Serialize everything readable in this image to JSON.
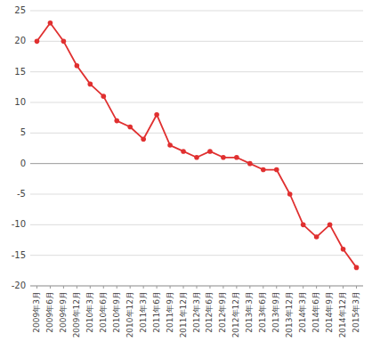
{
  "chart_data": {
    "type": "line",
    "categories": [
      "2009年3月",
      "2009年6月",
      "2009年9月",
      "2009年12月",
      "2010年3月",
      "2010年6月",
      "2010年9月",
      "2010年12月",
      "2011年3月",
      "2011年6月",
      "2011年9月",
      "2011年12月",
      "2012年3月",
      "2012年6月",
      "2012年9月",
      "2012年12月",
      "2013年3月",
      "2013年6月",
      "2013年9月",
      "2013年12月",
      "2014年3月",
      "2014年6月",
      "2014年9月",
      "2014年12月",
      "2015年3月"
    ],
    "values": [
      20,
      23,
      20,
      16,
      13,
      11,
      7,
      6,
      4,
      8,
      3,
      2,
      1,
      2,
      1,
      1,
      0,
      -1,
      -1,
      -5,
      -10,
      -12,
      -10,
      -14,
      -17
    ],
    "color": "#e03030",
    "marker": "circle",
    "ylim": [
      -20,
      25
    ],
    "yticks": [
      -20,
      -15,
      -10,
      -5,
      0,
      5,
      10,
      15,
      20,
      25
    ],
    "grid": true
  }
}
